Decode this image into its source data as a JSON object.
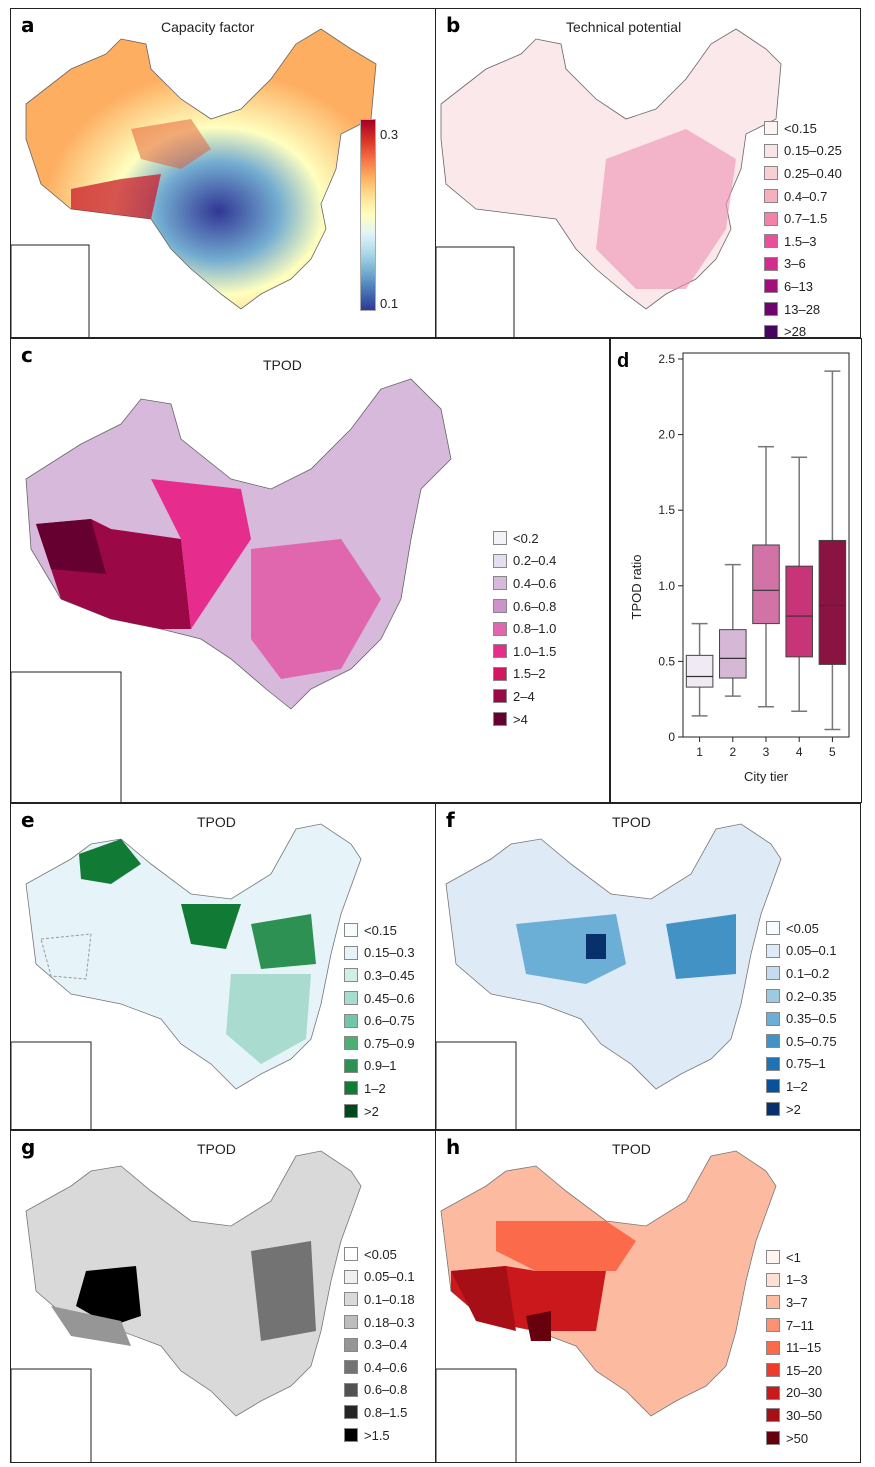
{
  "panels": {
    "a": {
      "label": "a",
      "title": "Capacity factor",
      "colorbar": {
        "max_label": "0.3",
        "min_label": "0.1",
        "colors": [
          "#a50026",
          "#f46d43",
          "#fee090",
          "#ffffbf",
          "#abd9e9",
          "#313695"
        ]
      }
    },
    "b": {
      "label": "b",
      "title": "Technical potential",
      "legend": [
        {
          "label": "<0.15",
          "color": "#fdf3f3"
        },
        {
          "label": "0.15–0.25",
          "color": "#fbe4e6"
        },
        {
          "label": "0.25–0.40",
          "color": "#f9cfd3"
        },
        {
          "label": "0.4–0.7",
          "color": "#f6b0bd"
        },
        {
          "label": "0.7–1.5",
          "color": "#f283a7"
        },
        {
          "label": "1.5–3",
          "color": "#e8509c"
        },
        {
          "label": "3–6",
          "color": "#d12d8f"
        },
        {
          "label": "6–13",
          "color": "#a50d7d"
        },
        {
          "label": "13–28",
          "color": "#6e0470"
        },
        {
          "label": ">28",
          "color": "#48055f"
        }
      ]
    },
    "c": {
      "label": "c",
      "title": "TPOD",
      "legend": [
        {
          "label": "<0.2",
          "color": "#f4f1f8"
        },
        {
          "label": "0.2–0.4",
          "color": "#e4def0"
        },
        {
          "label": "0.4–0.6",
          "color": "#d6b9db"
        },
        {
          "label": "0.6–0.8",
          "color": "#cd92c9"
        },
        {
          "label": "0.8–1.0",
          "color": "#e066ad"
        },
        {
          "label": "1.0–1.5",
          "color": "#e62c8c"
        },
        {
          "label": "1.5–2",
          "color": "#d21661"
        },
        {
          "label": "2–4",
          "color": "#9a0845"
        },
        {
          "label": ">4",
          "color": "#660030"
        }
      ]
    },
    "e": {
      "label": "e",
      "title": "TPOD",
      "legend": [
        {
          "label": "<0.15",
          "color": "#f7fcfd"
        },
        {
          "label": "0.15–0.3",
          "color": "#e6f3f8"
        },
        {
          "label": "0.3–0.45",
          "color": "#d0ede6"
        },
        {
          "label": "0.45–0.6",
          "color": "#a9dcce"
        },
        {
          "label": "0.6–0.75",
          "color": "#72c5a6"
        },
        {
          "label": "0.75–0.9",
          "color": "#4caf78"
        },
        {
          "label": "0.9–1",
          "color": "#2c9152"
        },
        {
          "label": "1–2",
          "color": "#117a35"
        },
        {
          "label": ">2",
          "color": "#00471b"
        }
      ]
    },
    "f": {
      "label": "f",
      "title": "TPOD",
      "legend": [
        {
          "label": "<0.05",
          "color": "#f7fbff"
        },
        {
          "label": "0.05–0.1",
          "color": "#deebf7"
        },
        {
          "label": "0.1–0.2",
          "color": "#c6dbef"
        },
        {
          "label": "0.2–0.35",
          "color": "#9ecae1"
        },
        {
          "label": "0.35–0.5",
          "color": "#6baed6"
        },
        {
          "label": "0.5–0.75",
          "color": "#4292c6"
        },
        {
          "label": "0.75–1",
          "color": "#2171b5"
        },
        {
          "label": "1–2",
          "color": "#08519c"
        },
        {
          "label": ">2",
          "color": "#08306b"
        }
      ]
    },
    "g": {
      "label": "g",
      "title": "TPOD",
      "legend": [
        {
          "label": "<0.05",
          "color": "#ffffff"
        },
        {
          "label": "0.05–0.1",
          "color": "#f0f0f0"
        },
        {
          "label": "0.1–0.18",
          "color": "#d9d9d9"
        },
        {
          "label": "0.18–0.3",
          "color": "#bdbdbd"
        },
        {
          "label": "0.3–0.4",
          "color": "#969696"
        },
        {
          "label": "0.4–0.6",
          "color": "#737373"
        },
        {
          "label": "0.6–0.8",
          "color": "#525252"
        },
        {
          "label": "0.8–1.5",
          "color": "#252525"
        },
        {
          "label": ">1.5",
          "color": "#000000"
        }
      ]
    },
    "h": {
      "label": "h",
      "title": "TPOD",
      "legend": [
        {
          "label": "<1",
          "color": "#fff5f0"
        },
        {
          "label": "1–3",
          "color": "#fee0d2"
        },
        {
          "label": "3–7",
          "color": "#fcbba1"
        },
        {
          "label": "7–11",
          "color": "#fc9272"
        },
        {
          "label": "11–15",
          "color": "#fb6a4a"
        },
        {
          "label": "15–20",
          "color": "#ef3b2c"
        },
        {
          "label": "20–30",
          "color": "#cb181d"
        },
        {
          "label": "30–50",
          "color": "#a50f15"
        },
        {
          "label": ">50",
          "color": "#67000d"
        }
      ]
    }
  },
  "chart_data": {
    "type": "box",
    "label": "d",
    "title": "",
    "xlabel": "City tier",
    "ylabel": "TPOD ratio",
    "categories": [
      "1",
      "2",
      "3",
      "4",
      "5"
    ],
    "ylim": [
      0,
      2.5
    ],
    "yticks": [
      "0",
      "0.5",
      "1.0",
      "1.5",
      "2.0",
      "2.5"
    ],
    "ytick_values": [
      0,
      0.5,
      1.0,
      1.5,
      2.0,
      2.5
    ],
    "boxes": [
      {
        "tier": "1",
        "whisker_low": 0.14,
        "q1": 0.33,
        "median": 0.4,
        "q3": 0.54,
        "whisker_high": 0.75,
        "color": "#efeaf3"
      },
      {
        "tier": "2",
        "whisker_low": 0.27,
        "q1": 0.39,
        "median": 0.52,
        "q3": 0.71,
        "whisker_high": 1.14,
        "color": "#d6b8d6"
      },
      {
        "tier": "3",
        "whisker_low": 0.2,
        "q1": 0.75,
        "median": 0.97,
        "q3": 1.27,
        "whisker_high": 1.92,
        "color": "#d273a8"
      },
      {
        "tier": "4",
        "whisker_low": 0.17,
        "q1": 0.53,
        "median": 0.8,
        "q3": 1.13,
        "whisker_high": 1.85,
        "color": "#c83478"
      },
      {
        "tier": "5",
        "whisker_low": 0.05,
        "q1": 0.48,
        "median": 0.87,
        "q3": 1.3,
        "whisker_high": 2.42,
        "color": "#891442"
      }
    ]
  }
}
